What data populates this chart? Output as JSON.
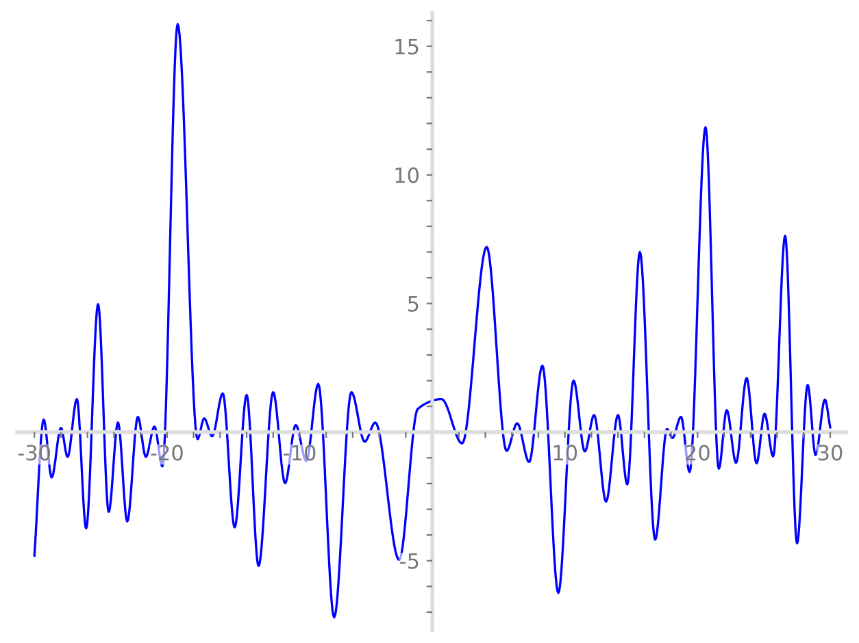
{
  "chart_data": {
    "type": "line",
    "x": [
      -30,
      -29.3,
      -28.7,
      -28.0,
      -27.5,
      -26.8,
      -26.1,
      -25.2,
      -24.4,
      -23.7,
      -23.0,
      -22.2,
      -21.6,
      -20.95,
      -20.35,
      -19.2,
      -17.7,
      -17.2,
      -16.6,
      -15.8,
      -14.9,
      -14.0,
      -13.1,
      -12.0,
      -11.1,
      -10.3,
      -9.5,
      -8.6,
      -7.4,
      -6.1,
      -5.1,
      -4.3,
      -2.5,
      -1.1,
      0.7,
      2.25,
      4.1,
      5.6,
      6.4,
      7.3,
      8.3,
      9.5,
      10.65,
      11.5,
      12.2,
      13.1,
      14.0,
      14.7,
      15.65,
      16.8,
      17.7,
      18.1,
      18.75,
      19.4,
      20.6,
      21.6,
      22.2,
      22.9,
      23.7,
      24.45,
      25.05,
      25.7,
      26.6,
      27.5,
      28.3,
      28.9,
      29.6,
      30
    ],
    "series": [
      {
        "color": "#0000ff",
        "values": [
          -4.8,
          0.48,
          -1.76,
          0.16,
          -0.96,
          1.28,
          -3.74,
          4.97,
          -3.1,
          0.37,
          -3.47,
          0.59,
          -0.96,
          0.21,
          -1.33,
          15.86,
          -0.27,
          0.53,
          -0.16,
          1.5,
          -3.7,
          1.44,
          -5.2,
          1.55,
          -1.98,
          0.27,
          -1.12,
          1.87,
          -7.2,
          1.55,
          -0.37,
          0.37,
          -4.97,
          0.9,
          1.28,
          -0.44,
          7.2,
          -0.73,
          0.34,
          -1.16,
          2.58,
          -6.25,
          2.0,
          -0.75,
          0.66,
          -2.7,
          0.66,
          -2.03,
          7.0,
          -4.18,
          0.12,
          -0.23,
          0.59,
          -1.55,
          11.85,
          -1.42,
          0.85,
          -1.19,
          2.1,
          -1.21,
          0.71,
          -0.94,
          7.63,
          -4.32,
          1.83,
          -0.89,
          1.26,
          0.18
        ]
      }
    ],
    "xlim": [
      -31.3,
      31.2
    ],
    "ylim": [
      -7.7,
      16.3
    ],
    "xticks": [
      -30,
      {
        "value": -28,
        "label": null
      },
      {
        "value": -26,
        "label": null
      },
      {
        "value": -24,
        "label": null
      },
      {
        "value": -22,
        "label": null
      },
      -20,
      {
        "value": -18,
        "label": null
      },
      {
        "value": -16,
        "label": null
      },
      {
        "value": -14,
        "label": null
      },
      {
        "value": -12,
        "label": null
      },
      -10,
      {
        "value": -8,
        "label": null
      },
      {
        "value": -6,
        "label": null
      },
      {
        "value": -4,
        "label": null
      },
      {
        "value": -2,
        "label": null
      },
      {
        "value": 2,
        "label": null
      },
      {
        "value": 4,
        "label": null
      },
      {
        "value": 6,
        "label": null
      },
      {
        "value": 8,
        "label": null
      },
      10,
      {
        "value": 12,
        "label": null
      },
      {
        "value": 14,
        "label": null
      },
      {
        "value": 16,
        "label": null
      },
      {
        "value": 18,
        "label": null
      },
      20,
      {
        "value": 22,
        "label": null
      },
      {
        "value": 24,
        "label": null
      },
      {
        "value": 26,
        "label": null
      },
      {
        "value": 28,
        "label": null
      },
      30
    ],
    "yticks": [
      {
        "value": -7,
        "label": null
      },
      {
        "value": -6,
        "label": null
      },
      -5,
      {
        "value": -4,
        "label": null
      },
      {
        "value": -3,
        "label": null
      },
      {
        "value": -2,
        "label": null
      },
      {
        "value": -1,
        "label": null
      },
      {
        "value": 1,
        "label": null
      },
      {
        "value": 2,
        "label": null
      },
      {
        "value": 3,
        "label": null
      },
      {
        "value": 4,
        "label": null
      },
      5,
      {
        "value": 6,
        "label": null
      },
      {
        "value": 7,
        "label": null
      },
      {
        "value": 8,
        "label": null
      },
      {
        "value": 9,
        "label": null
      },
      10,
      {
        "value": 11,
        "label": null
      },
      {
        "value": 12,
        "label": null
      },
      {
        "value": 13,
        "label": null
      },
      {
        "value": 14,
        "label": null
      },
      15,
      {
        "value": 16,
        "label": null
      }
    ],
    "grid": false,
    "legend": false
  }
}
